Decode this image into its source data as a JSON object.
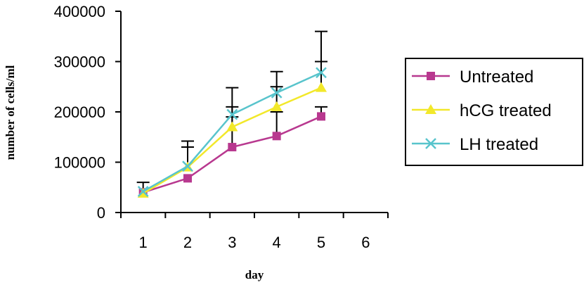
{
  "chart_data": {
    "type": "line",
    "title": "",
    "xlabel": "day",
    "ylabel": "number of cells/ml",
    "x_ticks": [
      "1",
      "2",
      "3",
      "4",
      "5",
      "6"
    ],
    "y_ticks": [
      "0",
      "100000",
      "200000",
      "300000",
      "400000"
    ],
    "xlim": [
      0.5,
      6.5
    ],
    "ylim": [
      0,
      400000
    ],
    "grid": false,
    "legend_position": "right",
    "series": [
      {
        "name": "Untreated",
        "color": "#b8388f",
        "marker": "square",
        "x": [
          1,
          2,
          3,
          4,
          5
        ],
        "values": [
          40000,
          68000,
          130000,
          152000,
          191000
        ],
        "error_upper": [
          null,
          null,
          190000,
          200000,
          210000
        ]
      },
      {
        "name": "hCG treated",
        "color": "#f2e82a",
        "marker": "triangle",
        "x": [
          1,
          2,
          3,
          4,
          5
        ],
        "values": [
          38000,
          90000,
          170000,
          210000,
          248000
        ],
        "error_upper": [
          null,
          130000,
          210000,
          250000,
          300000
        ]
      },
      {
        "name": "LH treated",
        "color": "#58c4cc",
        "marker": "x",
        "x": [
          1,
          2,
          3,
          4,
          5
        ],
        "values": [
          42000,
          92000,
          195000,
          238000,
          278000
        ],
        "error_upper": [
          60000,
          142000,
          248000,
          280000,
          360000
        ]
      }
    ]
  }
}
